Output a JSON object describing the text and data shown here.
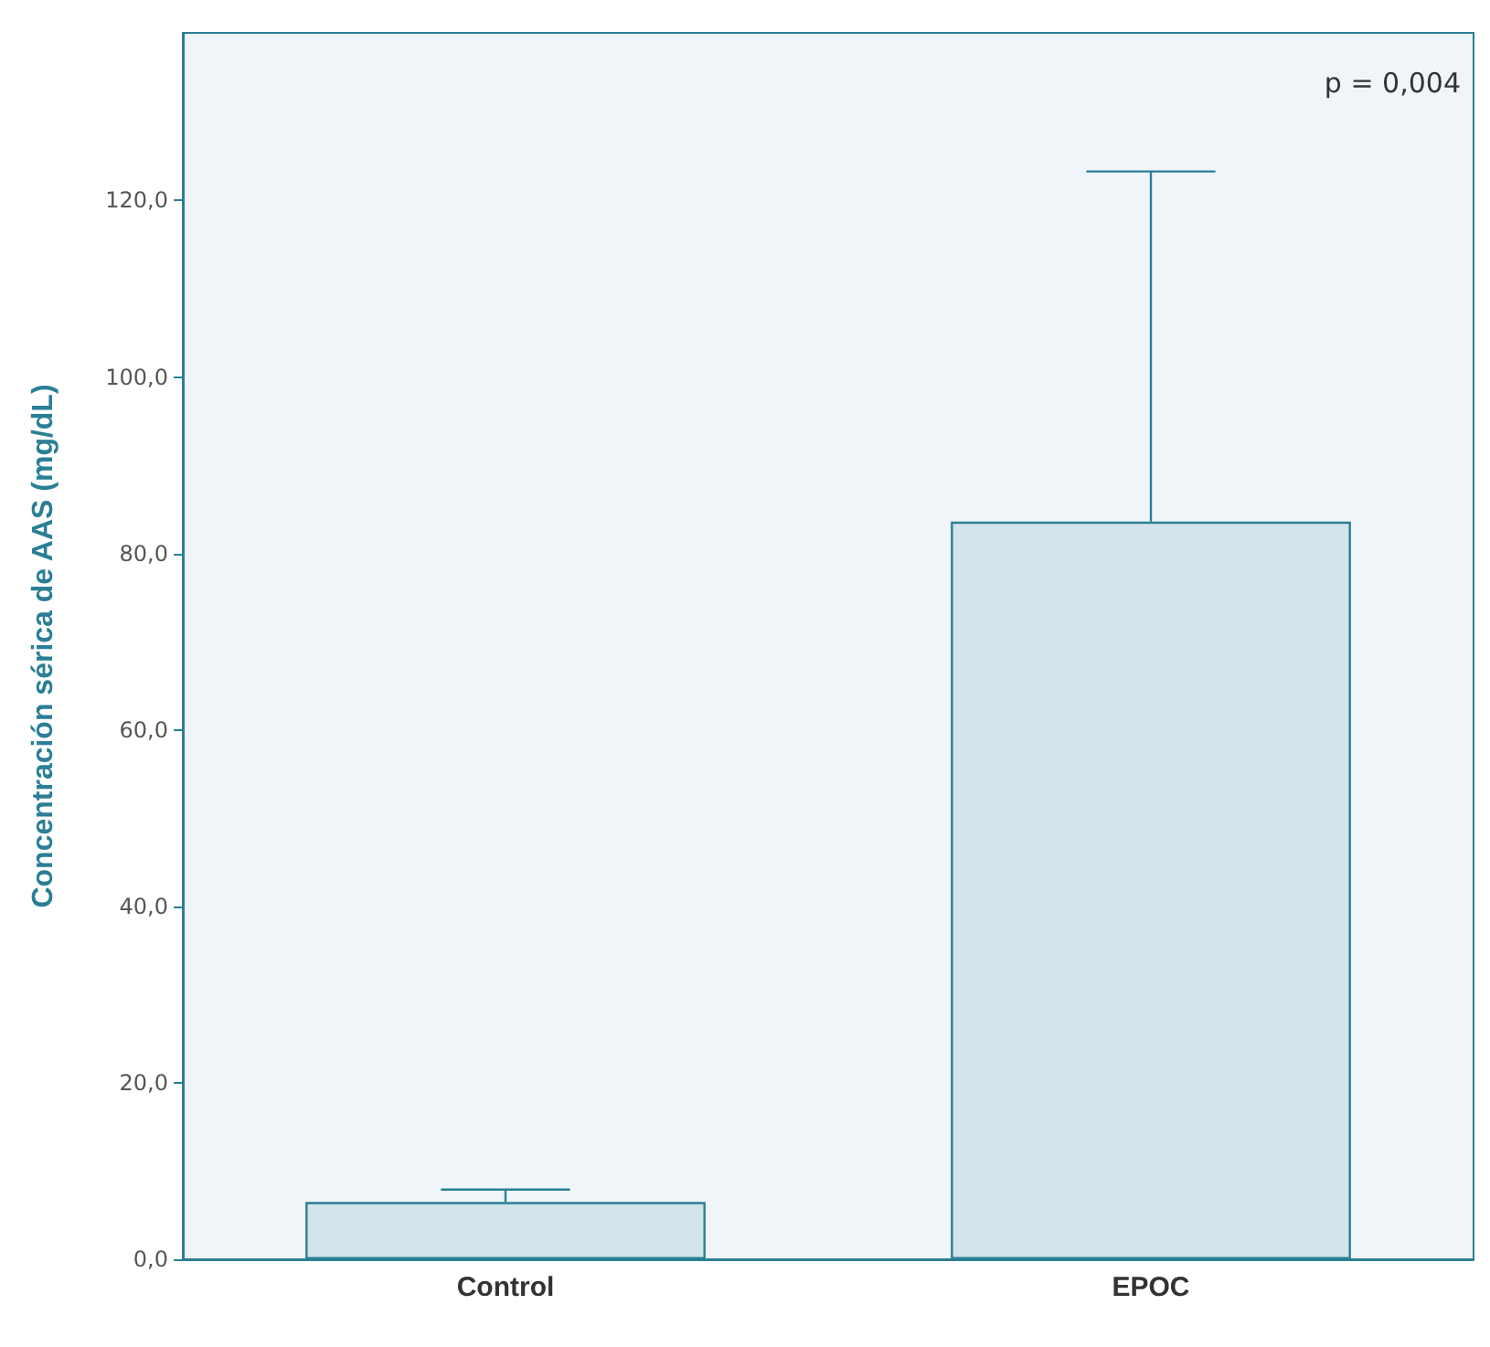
{
  "chart_data": {
    "type": "bar",
    "ylabel": "Concentración sérica de AAS (mg/dL)",
    "annotations": [
      "p = 0,004"
    ],
    "categories": [
      "Control",
      "EPOC"
    ],
    "values": [
      6.5,
      83.6
    ],
    "color": "#d3e4ea",
    "errors": [
      [
        6.5,
        7.9
      ],
      [
        83.6,
        123.3
      ]
    ],
    "ylim": [
      0,
      139
    ],
    "yticks": [
      {
        "value": 0,
        "label": "0,0"
      },
      {
        "value": 20,
        "label": "20,0"
      },
      {
        "value": 40,
        "label": "40,0"
      },
      {
        "value": 60,
        "label": "60,0"
      },
      {
        "value": 80,
        "label": "80,0"
      },
      {
        "value": 100,
        "label": "100,0"
      },
      {
        "value": 120,
        "label": "120,0"
      }
    ]
  }
}
